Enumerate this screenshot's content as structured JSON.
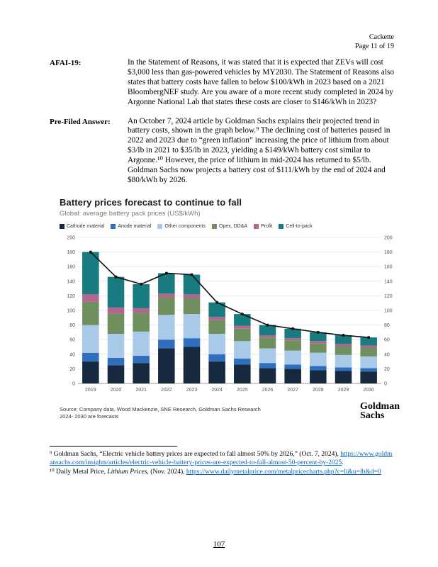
{
  "page": {
    "header_name": "Cackette",
    "header_page": "Page 11 of 19",
    "page_number": "107"
  },
  "qa": {
    "question_label": "AFAI-19:",
    "question_text": "In the Statement of Reasons, it was stated that it is expected that ZEVs will cost $3,000 less than gas-powered vehicles by MY2030. The Statement of Reasons also states that battery costs have fallen to below $100/kWh in 2023 based on a 2021 BloombergNEF study. Are you aware of a more recent study completed in 2024 by Argonne National Lab that states these costs are closer to $146/kWh in 2023?",
    "answer_label": "Pre-Filed Answer:",
    "answer_text": "An October 7, 2024 article by Goldman Sachs explains their projected trend in battery costs, shown in the graph below.⁹ The declining cost of batteries paused in 2022 and 2023 due to “green inflation” increasing the price of lithium from about $3/lb in 2021 to $35/lb in 2023, yielding a $149/kWh battery cost similar to Argonne.¹⁰ However, the price of lithium in mid-2024 has returned to $5/lb. Goldman Sachs now projects a battery cost of $111/kWh by the end of 2024 and $80/kWh by 2026."
  },
  "chart": {
    "title": "Battery prices forecast to continue to fall",
    "subtitle": "Global: average battery pack prices (US$/kWh)",
    "source_line_1": "Source: Company data, Wood Mackenzie, SNE Research, Goldman Sachs Research",
    "source_line_2": "2024- 2030 are forecasts",
    "logo_top": "Goldman",
    "logo_bottom": "Sachs"
  },
  "chart_data": {
    "type": "bar",
    "stacked": true,
    "title": "Battery prices forecast to continue to fall",
    "subtitle": "Global: average battery pack prices (US$/kWh)",
    "xlabel": "",
    "ylabel": "US$/kWh",
    "ylim": [
      0,
      200
    ],
    "ytick_step": 20,
    "grid": true,
    "legend_position": "top",
    "categories": [
      "2019",
      "2020",
      "2021",
      "2022",
      "2023",
      "2024",
      "2025",
      "2026",
      "2027",
      "2028",
      "2029",
      "2030"
    ],
    "series": [
      {
        "name": "Cathode material",
        "color": "#16293e",
        "values": [
          30,
          25,
          28,
          48,
          50,
          30,
          26,
          21,
          20,
          18,
          17,
          16
        ]
      },
      {
        "name": "Anode material",
        "color": "#2f6fbe",
        "values": [
          12,
          10,
          10,
          12,
          12,
          10,
          8,
          7,
          6,
          6,
          5,
          5
        ]
      },
      {
        "name": "Other components",
        "color": "#a9c9e8",
        "values": [
          38,
          33,
          33,
          34,
          33,
          28,
          24,
          20,
          19,
          18,
          17,
          16
        ]
      },
      {
        "name": "Opex, DD&A",
        "color": "#6f8f5e",
        "values": [
          32,
          28,
          26,
          24,
          22,
          19,
          17,
          15,
          14,
          13,
          12,
          12
        ]
      },
      {
        "name": "Profit",
        "color": "#b4648e",
        "values": [
          10,
          8,
          6,
          5,
          5,
          4,
          4,
          3,
          3,
          3,
          3,
          3
        ]
      },
      {
        "name": "Cell-to-pack",
        "color": "#177b80",
        "values": [
          58,
          42,
          33,
          28,
          27,
          20,
          16,
          14,
          13,
          12,
          12,
          11
        ]
      }
    ],
    "line_overlay": {
      "name": "Average battery pack price",
      "color": "#111111",
      "values": [
        180,
        146,
        136,
        151,
        149,
        111,
        95,
        80,
        75,
        70,
        66,
        63
      ]
    }
  },
  "footnotes": {
    "fn9_text": "⁹ Goldman Sachs, “Electric vehicle battery prices are expected to fall almost 50% by 2026,” (Oct. 7, 2024), ",
    "fn9_link": "https://www.goldmansachs.com/insights/articles/electric-vehicle-battery-prices-are-expected-to-fall-almost-50-percent-by-2025",
    "fn9_suffix": ".",
    "fn10_prefix": "¹⁰ Daily Metal Price, ",
    "fn10_italic": "Lithium Prices",
    "fn10_mid": ", (Nov. 2024), ",
    "fn10_link": "https://www.dailymetalprice.com/metalpricecharts.php?c=li&u=lb&d=0"
  },
  "colors": {
    "link_blue": "#0563C1",
    "line_black": "#111111"
  }
}
